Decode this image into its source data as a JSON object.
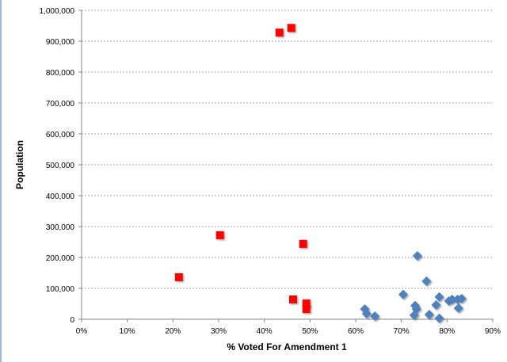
{
  "chart_data": {
    "type": "scatter",
    "title": "",
    "xlabel": "% Voted For Amendment 1",
    "ylabel": "Population",
    "xlim": [
      0,
      90
    ],
    "ylim": [
      0,
      1000000
    ],
    "x_ticks": [
      "0%",
      "10%",
      "20%",
      "30%",
      "40%",
      "50%",
      "60%",
      "70%",
      "80%",
      "90%"
    ],
    "y_ticks": [
      "0",
      "100,000",
      "200,000",
      "300,000",
      "400,000",
      "500,000",
      "600,000",
      "700,000",
      "800,000",
      "900,000",
      "1,000,000"
    ],
    "grid": "horizontal-dashed",
    "legend": "none",
    "series": [
      {
        "name": "red",
        "marker": "square",
        "color": "#ff0000",
        "points": [
          [
            21.3,
            136000
          ],
          [
            30.3,
            272000
          ],
          [
            43.3,
            928000
          ],
          [
            45.9,
            943000
          ],
          [
            48.5,
            244000
          ],
          [
            46.3,
            64000
          ],
          [
            49.2,
            51000
          ],
          [
            49.2,
            33000
          ]
        ]
      },
      {
        "name": "blue",
        "marker": "diamond",
        "color": "#4f81bd",
        "points": [
          [
            62.0,
            33000
          ],
          [
            62.4,
            18000
          ],
          [
            64.2,
            10000
          ],
          [
            70.4,
            80000
          ],
          [
            73.5,
            205000
          ],
          [
            75.5,
            123000
          ],
          [
            73.0,
            44000
          ],
          [
            73.3,
            33000
          ],
          [
            72.8,
            13000
          ],
          [
            76.1,
            15000
          ],
          [
            77.6,
            46000
          ],
          [
            78.3,
            72000
          ],
          [
            78.3,
            3000
          ],
          [
            80.4,
            59000
          ],
          [
            81.1,
            64000
          ],
          [
            82.3,
            64000
          ],
          [
            83.2,
            67000
          ],
          [
            82.5,
            36000
          ]
        ]
      }
    ]
  }
}
